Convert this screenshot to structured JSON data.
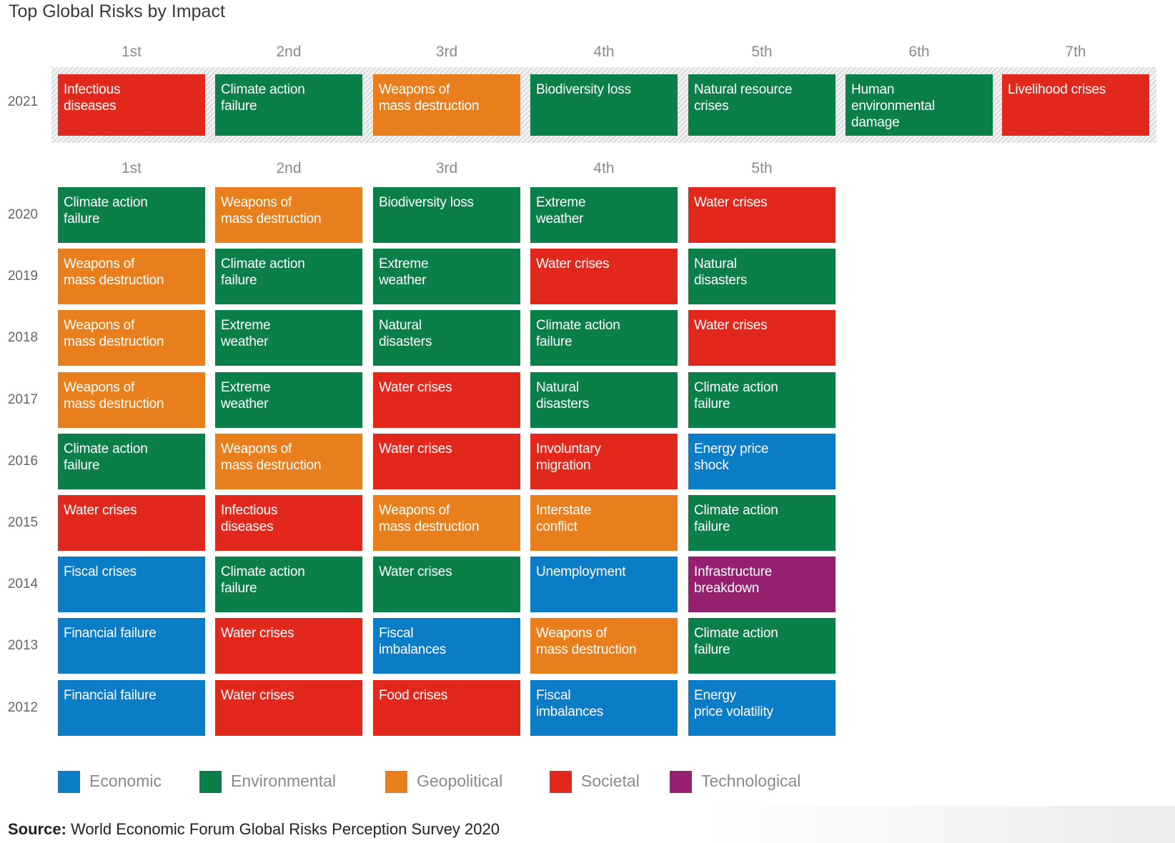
{
  "title": "Top Global Risks by Impact",
  "colors": {
    "Economic": "#0b7dc6",
    "Environmental": "#0a8048",
    "Geopolitical": "#e87e1c",
    "Societal": "#e2281c",
    "Technological": "#952070"
  },
  "chart_data": [
    {
      "type": "table",
      "columns": [
        "1st",
        "2nd",
        "3rd",
        "4th",
        "5th",
        "6th",
        "7th"
      ],
      "rows": [
        {
          "year": "2021",
          "cells": [
            {
              "label": "Infectious\ndiseases",
              "category": "Societal"
            },
            {
              "label": "Climate action\nfailure",
              "category": "Environmental"
            },
            {
              "label": "Weapons of\nmass destruction",
              "category": "Geopolitical"
            },
            {
              "label": "Biodiversity loss",
              "category": "Environmental"
            },
            {
              "label": "Natural resource\ncrises",
              "category": "Environmental"
            },
            {
              "label": "Human\nenvironmental\ndamage",
              "category": "Environmental"
            },
            {
              "label": "Livelihood crises",
              "category": "Societal"
            }
          ]
        }
      ]
    },
    {
      "type": "table",
      "columns": [
        "1st",
        "2nd",
        "3rd",
        "4th",
        "5th"
      ],
      "rows": [
        {
          "year": "2020",
          "cells": [
            {
              "label": "Climate action\nfailure",
              "category": "Environmental"
            },
            {
              "label": "Weapons of\nmass destruction",
              "category": "Geopolitical"
            },
            {
              "label": "Biodiversity loss",
              "category": "Environmental"
            },
            {
              "label": "Extreme\nweather",
              "category": "Environmental"
            },
            {
              "label": "Water crises",
              "category": "Societal"
            }
          ]
        },
        {
          "year": "2019",
          "cells": [
            {
              "label": "Weapons of\nmass destruction",
              "category": "Geopolitical"
            },
            {
              "label": "Climate action\nfailure",
              "category": "Environmental"
            },
            {
              "label": "Extreme\nweather",
              "category": "Environmental"
            },
            {
              "label": "Water crises",
              "category": "Societal"
            },
            {
              "label": "Natural\ndisasters",
              "category": "Environmental"
            }
          ]
        },
        {
          "year": "2018",
          "cells": [
            {
              "label": "Weapons of\nmass destruction",
              "category": "Geopolitical"
            },
            {
              "label": "Extreme\nweather",
              "category": "Environmental"
            },
            {
              "label": "Natural\ndisasters",
              "category": "Environmental"
            },
            {
              "label": "Climate action\nfailure",
              "category": "Environmental"
            },
            {
              "label": "Water crises",
              "category": "Societal"
            }
          ]
        },
        {
          "year": "2017",
          "cells": [
            {
              "label": "Weapons of\nmass destruction",
              "category": "Geopolitical"
            },
            {
              "label": "Extreme\nweather",
              "category": "Environmental"
            },
            {
              "label": "Water crises",
              "category": "Societal"
            },
            {
              "label": "Natural\ndisasters",
              "category": "Environmental"
            },
            {
              "label": "Climate action\nfailure",
              "category": "Environmental"
            }
          ]
        },
        {
          "year": "2016",
          "cells": [
            {
              "label": "Climate action\nfailure",
              "category": "Environmental"
            },
            {
              "label": "Weapons of\nmass destruction",
              "category": "Geopolitical"
            },
            {
              "label": "Water crises",
              "category": "Societal"
            },
            {
              "label": "Involuntary\nmigration",
              "category": "Societal"
            },
            {
              "label": "Energy price\nshock",
              "category": "Economic"
            }
          ]
        },
        {
          "year": "2015",
          "cells": [
            {
              "label": "Water crises",
              "category": "Societal"
            },
            {
              "label": "Infectious\ndiseases",
              "category": "Societal"
            },
            {
              "label": "Weapons of\nmass destruction",
              "category": "Geopolitical"
            },
            {
              "label": "Interstate\nconflict",
              "category": "Geopolitical"
            },
            {
              "label": "Climate action\nfailure",
              "category": "Environmental"
            }
          ]
        },
        {
          "year": "2014",
          "cells": [
            {
              "label": "Fiscal crises",
              "category": "Economic"
            },
            {
              "label": "Climate action\nfailure",
              "category": "Environmental"
            },
            {
              "label": "Water crises",
              "category": "Environmental"
            },
            {
              "label": "Unemployment",
              "category": "Economic"
            },
            {
              "label": "Infrastructure\nbreakdown",
              "category": "Technological"
            }
          ]
        },
        {
          "year": "2013",
          "cells": [
            {
              "label": "Financial failure",
              "category": "Economic"
            },
            {
              "label": "Water crises",
              "category": "Societal"
            },
            {
              "label": "Fiscal\nimbalances",
              "category": "Economic"
            },
            {
              "label": "Weapons of\nmass destruction",
              "category": "Geopolitical"
            },
            {
              "label": "Climate action\nfailure",
              "category": "Environmental"
            }
          ]
        },
        {
          "year": "2012",
          "cells": [
            {
              "label": "Financial failure",
              "category": "Economic"
            },
            {
              "label": "Water crises",
              "category": "Societal"
            },
            {
              "label": "Food crises",
              "category": "Societal"
            },
            {
              "label": "Fiscal\nimbalances",
              "category": "Economic"
            },
            {
              "label": "Energy\nprice volatility",
              "category": "Economic"
            }
          ]
        }
      ]
    }
  ],
  "legend": [
    "Economic",
    "Environmental",
    "Geopolitical",
    "Societal",
    "Technological"
  ],
  "source": {
    "prefix": "Source:",
    "text": " World Economic Forum Global Risks Perception Survey 2020"
  }
}
